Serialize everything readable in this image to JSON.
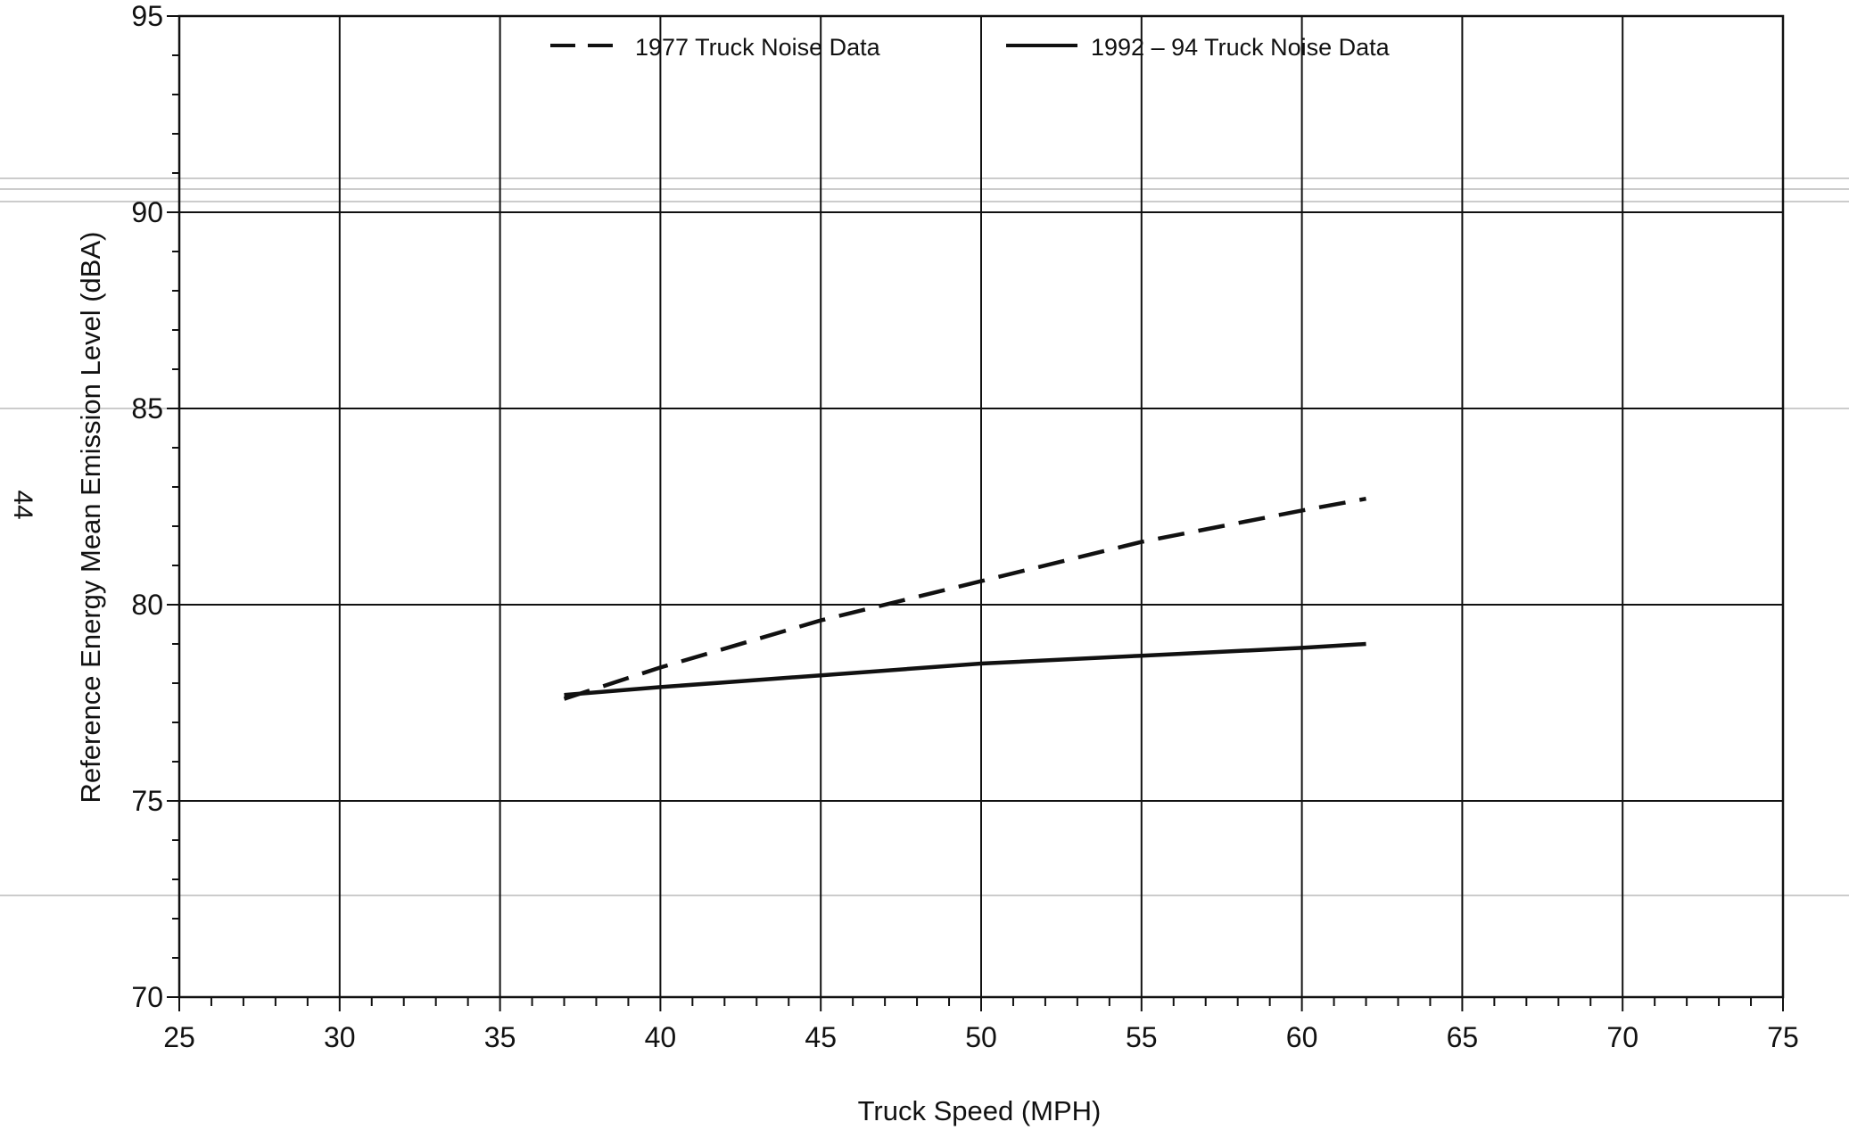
{
  "page_number": "44",
  "chart_data": {
    "type": "line",
    "title": "",
    "xlabel": "Truck Speed (MPH)",
    "ylabel": "Reference Energy Mean Emission Level (dBA)",
    "xlim": [
      25,
      75
    ],
    "ylim": [
      70,
      95
    ],
    "x_ticks": [
      25,
      30,
      35,
      40,
      45,
      50,
      55,
      60,
      65,
      70,
      75
    ],
    "y_ticks": [
      70,
      75,
      80,
      85,
      90,
      95
    ],
    "grid": true,
    "legend_position": "top",
    "series": [
      {
        "name": "1977 Truck Noise Data",
        "line_style": "dashed",
        "color": "#111111",
        "x": [
          37,
          40,
          45,
          50,
          55,
          60,
          62
        ],
        "y": [
          77.6,
          78.4,
          79.6,
          80.6,
          81.6,
          82.4,
          82.7
        ]
      },
      {
        "name": "1992 – 94 Truck Noise Data",
        "line_style": "solid",
        "color": "#111111",
        "x": [
          37,
          40,
          45,
          50,
          55,
          60,
          62
        ],
        "y": [
          77.7,
          77.9,
          78.2,
          78.5,
          78.7,
          78.9,
          79.0
        ]
      }
    ]
  }
}
